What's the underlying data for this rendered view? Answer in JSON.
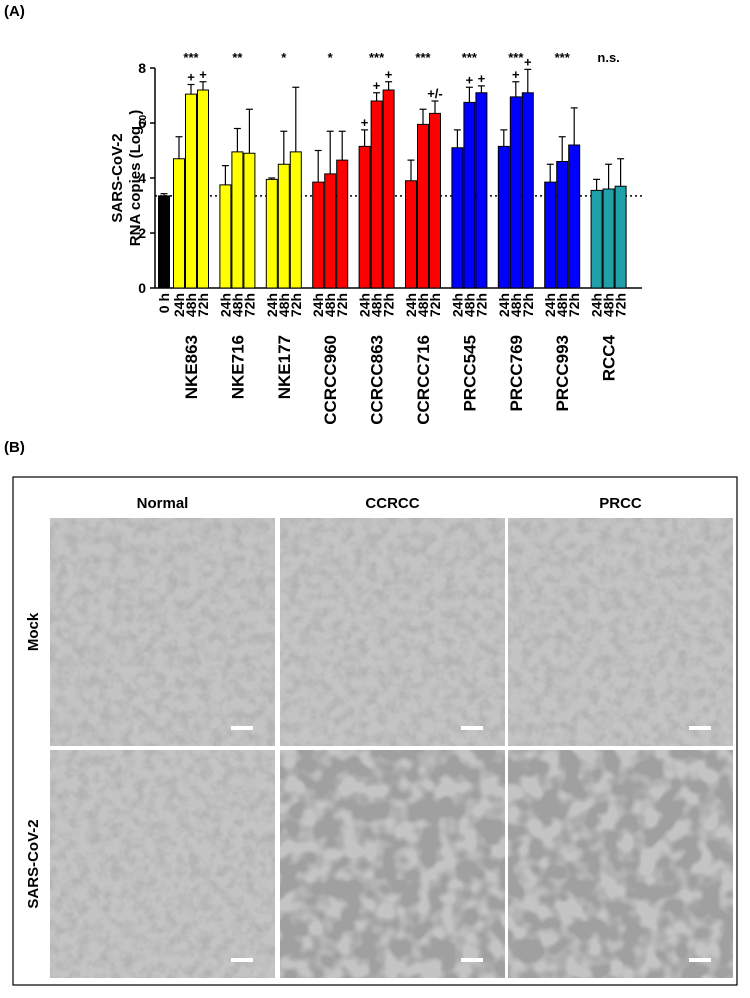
{
  "panel_a": {
    "label": "(A)"
  },
  "chart_data": {
    "type": "bar",
    "y_label": [
      "SARS-CoV-2",
      "RNA copies (Log",
      "10",
      ")"
    ],
    "ylim": [
      0,
      8
    ],
    "yticks": [
      0,
      2,
      4,
      6,
      8
    ],
    "reference_line": 3.35,
    "baseline": {
      "category": "0 h",
      "value": 3.35,
      "error": 0.08,
      "color": "#000000"
    },
    "groups": [
      {
        "name": "NKE863",
        "significance": "***",
        "color": "#ffff00",
        "categories": [
          "24h",
          "48h",
          "72h"
        ],
        "values": [
          4.7,
          7.05,
          7.2
        ],
        "errors": [
          0.8,
          0.35,
          0.3
        ],
        "marks": [
          null,
          "+",
          "+"
        ]
      },
      {
        "name": "NKE716",
        "significance": "**",
        "color": "#ffff00",
        "categories": [
          "24h",
          "48h",
          "72h"
        ],
        "values": [
          3.75,
          4.95,
          4.9
        ],
        "errors": [
          0.7,
          0.85,
          1.6
        ],
        "marks": [
          null,
          null,
          null
        ]
      },
      {
        "name": "NKE177",
        "significance": "*",
        "color": "#ffff00",
        "categories": [
          "24h",
          "48h",
          "72h"
        ],
        "values": [
          3.95,
          4.5,
          4.95
        ],
        "errors": [
          0.05,
          1.2,
          2.35
        ],
        "marks": [
          null,
          null,
          null
        ]
      },
      {
        "name": "CCRCC960",
        "significance": "*",
        "color": "#ff0000",
        "categories": [
          "24h",
          "48h",
          "72h"
        ],
        "values": [
          3.85,
          4.15,
          4.65
        ],
        "errors": [
          1.15,
          1.55,
          1.05
        ],
        "marks": [
          null,
          null,
          null
        ]
      },
      {
        "name": "CCRCC863",
        "significance": "***",
        "color": "#ff0000",
        "categories": [
          "24h",
          "48h",
          "72h"
        ],
        "values": [
          5.15,
          6.8,
          7.2
        ],
        "errors": [
          0.6,
          0.3,
          0.3
        ],
        "marks": [
          "+",
          "+",
          "+"
        ]
      },
      {
        "name": "CCRCC716",
        "significance": "***",
        "color": "#ff0000",
        "categories": [
          "24h",
          "48h",
          "72h"
        ],
        "values": [
          3.9,
          5.95,
          6.35
        ],
        "errors": [
          0.75,
          0.55,
          0.45
        ],
        "marks": [
          null,
          null,
          "+/-"
        ]
      },
      {
        "name": "PRCC545",
        "significance": "***",
        "color": "#0000ff",
        "categories": [
          "24h",
          "48h",
          "72h"
        ],
        "values": [
          5.1,
          6.75,
          7.1
        ],
        "errors": [
          0.65,
          0.55,
          0.25
        ],
        "marks": [
          null,
          "+",
          "+"
        ]
      },
      {
        "name": "PRCC769",
        "significance": "***",
        "color": "#0000ff",
        "categories": [
          "24h",
          "48h",
          "72h"
        ],
        "values": [
          5.15,
          6.95,
          7.1
        ],
        "errors": [
          0.6,
          0.55,
          0.85
        ],
        "marks": [
          null,
          "+",
          "+"
        ]
      },
      {
        "name": "PRCC993",
        "significance": "***",
        "color": "#0000ff",
        "categories": [
          "24h",
          "48h",
          "72h"
        ],
        "values": [
          3.85,
          4.6,
          5.2
        ],
        "errors": [
          0.65,
          0.9,
          1.35
        ],
        "marks": [
          null,
          null,
          null
        ]
      },
      {
        "name": "RCC4",
        "significance": "n.s.",
        "color": "#20a0a8",
        "categories": [
          "24h",
          "48h",
          "72h"
        ],
        "values": [
          3.55,
          3.6,
          3.7
        ],
        "errors": [
          0.4,
          0.9,
          1.0
        ],
        "marks": [
          null,
          null,
          null
        ]
      }
    ]
  },
  "panel_b": {
    "label": "(B)",
    "columns": [
      "Normal",
      "CCRCC",
      "PRCC"
    ],
    "rows": [
      "Mock",
      "SARS-CoV-2"
    ]
  }
}
